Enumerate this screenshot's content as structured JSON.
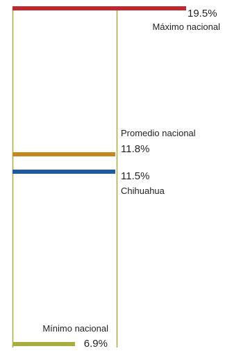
{
  "chart_data": {
    "type": "bar",
    "orientation": "horizontal",
    "ylim": [
      6.9,
      19.5
    ],
    "grid": false,
    "series": [
      {
        "label": "Máximo nacional",
        "value": 19.5,
        "display": "19.5%",
        "color": "#c1272d"
      },
      {
        "label": "Promedio nacional",
        "value": 11.8,
        "display": "11.8%",
        "color": "#c8871e"
      },
      {
        "label": "Chihuahua",
        "value": 11.5,
        "display": "11.5%",
        "color": "#1f5a9a"
      },
      {
        "label": "Mínimo nacional",
        "value": 6.9,
        "display": "6.9%",
        "color": "#a9ad3f"
      }
    ],
    "reference_line_color": "#a9ad3f"
  }
}
